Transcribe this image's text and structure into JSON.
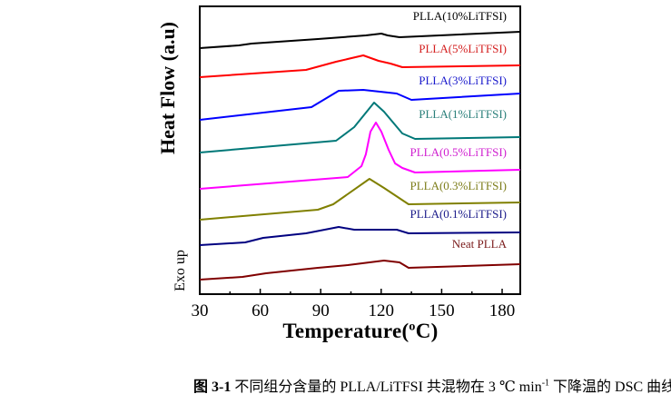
{
  "chart_data": {
    "type": "line",
    "title": "",
    "xlabel_main": "Temperature(",
    "xlabel_sup": "o",
    "xlabel_end": "C)",
    "ylabel": "Heat Flow (a.u)",
    "annotation_exo": "Exo up",
    "xlim": [
      30,
      189
    ],
    "ylim": [
      0,
      317
    ],
    "xticks": [
      30,
      60,
      90,
      120,
      150,
      180
    ],
    "xtick_labels": [
      "30",
      "60",
      "90",
      "120",
      "150",
      "180"
    ],
    "minor_xticks": [
      45,
      75,
      105,
      135,
      165
    ],
    "grid": false,
    "series": [
      {
        "name": "PLLA(10%LiTFSI)",
        "color": "#000000",
        "x": [
          30,
          49.4,
          55.7,
          88.6,
          112.4,
          120.1,
          123.2,
          129.1,
          189
        ],
        "y": [
          271,
          274,
          276,
          281,
          285,
          287,
          285,
          283,
          289
        ]
      },
      {
        "name": "PLLA(5%LiTFSI)",
        "color": "#ff0000",
        "label_color": "#d42020",
        "x": [
          30,
          82.7,
          97.6,
          111.1,
          118.7,
          124.6,
          130.5,
          189
        ],
        "y": [
          239,
          247,
          256,
          263,
          257,
          254,
          250,
          252
        ]
      },
      {
        "name": "PLLA(3%LiTFSI)",
        "color": "#0000ff",
        "label_color": "#1a1acc",
        "x": [
          30,
          85.4,
          98.9,
          111.1,
          127.7,
          135,
          189
        ],
        "y": [
          192,
          206,
          224,
          225,
          221,
          214,
          221
        ]
      },
      {
        "name": "PLLA(1%LiTFSI)",
        "color": "#007878",
        "label_color": "#2a7f7a",
        "x": [
          30,
          97.6,
          106.6,
          116.5,
          121.4,
          130.5,
          136.8,
          189
        ],
        "y": [
          156,
          169,
          184,
          211,
          201,
          177,
          171,
          173
        ]
      },
      {
        "name": "PLLA(0.5%LiTFSI)",
        "color": "#ff00ff",
        "label_color": "#d020d0",
        "x": [
          30,
          103.4,
          110.2,
          112.4,
          114.7,
          117.4,
          120.1,
          123.7,
          126.9,
          130.5,
          136.8,
          189
        ],
        "y": [
          116,
          129,
          141,
          154,
          179,
          189,
          179,
          159,
          144,
          139,
          134,
          137
        ]
      },
      {
        "name": "PLLA(0.3%LiTFSI)",
        "color": "#808000",
        "label_color": "#7d7d1a",
        "x": [
          30,
          88.6,
          96.2,
          114.2,
          121.4,
          133.6,
          189
        ],
        "y": [
          82,
          93,
          99,
          127,
          117,
          99,
          101
        ]
      },
      {
        "name": "PLLA(0.1%LiTFSI)",
        "color": "#000080",
        "label_color": "#1a1a8a",
        "x": [
          30,
          52.5,
          61.5,
          82.7,
          98.9,
          106.6,
          127.7,
          133.6,
          189
        ],
        "y": [
          54,
          57,
          62,
          67,
          74,
          71,
          71,
          67,
          68
        ]
      },
      {
        "name": "Neat PLLA",
        "color": "#800000",
        "label_color": "#7a1a1a",
        "x": [
          30,
          51.2,
          62.9,
          88.6,
          103.4,
          121.4,
          129.1,
          133.6,
          189
        ],
        "y": [
          16,
          19,
          23,
          29,
          32,
          37,
          35,
          29,
          33
        ]
      }
    ]
  },
  "caption": {
    "figure_no": "图 3-1",
    "text_before_sup": " 不同组分含量的 PLLA/LiTFSI 共混物在 3 ℃ min",
    "sup": "-1",
    "text_after_sup": " 下降温的 DSC 曲线"
  }
}
